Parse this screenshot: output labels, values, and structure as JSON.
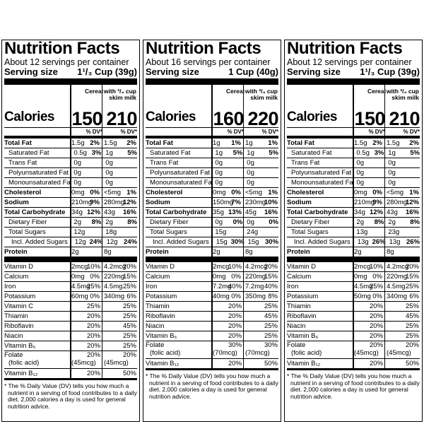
{
  "panels": [
    {
      "title": "Nutrition Facts",
      "servings": "About 12 servings per container",
      "serving_label": "Serving size",
      "serving_value": "1¹/₃ Cup (39g)",
      "col1_header": "Cereal",
      "col2_header": "with ³/₄ cup skim milk",
      "calories_label": "Calories",
      "calories_1": "150",
      "calories_2": "210",
      "dv_header_1": "% DV*",
      "dv_header_2": "% DV*",
      "nutrients": [
        {
          "name": "Total Fat",
          "a1": "1.5g",
          "p1": "2%",
          "a2": "1.5g",
          "p2": "2%"
        },
        {
          "name": "Saturated Fat",
          "a1": "0.5g",
          "p1": "3%",
          "a2": "1g",
          "p2": "5%"
        },
        {
          "name": "Trans Fat",
          "a1": "0g",
          "p1": "",
          "a2": "0g",
          "p2": ""
        },
        {
          "name": "Polyunsaturated Fat",
          "a1": "0g",
          "p1": "",
          "a2": "0g",
          "p2": ""
        },
        {
          "name": "Monounsaturated Fat",
          "a1": "0g",
          "p1": "",
          "a2": "0g",
          "p2": ""
        },
        {
          "name": "Cholesterol",
          "a1": "0mg",
          "p1": "0%",
          "a2": "<5mg",
          "p2": "1%"
        },
        {
          "name": "Sodium",
          "a1": "210mg",
          "p1": "9%",
          "a2": "280mg",
          "p2": "12%"
        },
        {
          "name": "Total Carbohydrate",
          "a1": "34g",
          "p1": "12%",
          "a2": "43g",
          "p2": "16%"
        },
        {
          "name": "Dietary Fiber",
          "a1": "2g",
          "p1": "8%",
          "a2": "2g",
          "p2": "8%"
        },
        {
          "name": "Total Sugars",
          "a1": "12g",
          "p1": "",
          "a2": "18g",
          "p2": ""
        },
        {
          "name": "Incl. Added Sugars",
          "a1": "12g",
          "p1": "24%",
          "a2": "12g",
          "p2": "24%"
        },
        {
          "name": "Protein",
          "a1": "2g",
          "p1": "",
          "a2": "8g",
          "p2": ""
        }
      ],
      "vitamins": [
        {
          "name": "Vitamin D",
          "a1": "2mcg",
          "p1": "10%",
          "a2": "4.2mcg",
          "p2": "20%"
        },
        {
          "name": "Calcium",
          "a1": "0mg",
          "p1": "0%",
          "a2": "220mg",
          "p2": "15%"
        },
        {
          "name": "Iron",
          "a1": "4.5mg",
          "p1": "25%",
          "a2": "4.5mg",
          "p2": "25%"
        },
        {
          "name": "Potassium",
          "a1": "60mg",
          "p1": "0%",
          "a2": "340mg",
          "p2": "6%"
        },
        {
          "name": "Vitamin C",
          "a1": "",
          "p1": "25%",
          "a2": "",
          "p2": "25%"
        },
        {
          "name": "Thiamin",
          "a1": "",
          "p1": "20%",
          "a2": "",
          "p2": "25%"
        },
        {
          "name": "Riboflavin",
          "a1": "",
          "p1": "20%",
          "a2": "",
          "p2": "45%"
        },
        {
          "name": "Niacin",
          "a1": "",
          "p1": "20%",
          "a2": "",
          "p2": "25%"
        },
        {
          "name": "Vitamin B₆",
          "a1": "",
          "p1": "20%",
          "a2": "",
          "p2": "25%"
        }
      ],
      "folate_name": "Folate",
      "folate_sub": "(folic acid)",
      "folate_a1": "(45mcg)",
      "folate_p1": "20%",
      "folate_a2": "(45mcg)",
      "folate_p2": "20%",
      "b12_name": "Vitamin B₁₂",
      "b12_p1": "20%",
      "b12_p2": "50%",
      "footnote": "* The % Daily Value (DV) tells you how much a nutrient in a serving of food contributes to a daily diet. 2,000 calories a day is used for general nutrition advice."
    },
    {
      "title": "Nutrition Facts",
      "servings": "About 16 servings per container",
      "serving_label": "Serving size",
      "serving_value": "1 Cup (40g)",
      "col1_header": "Cereal",
      "col2_header": "with ³/₄ cup skim milk",
      "calories_label": "Calories",
      "calories_1": "160",
      "calories_2": "220",
      "dv_header_1": "% DV*",
      "dv_header_2": "% DV*",
      "nutrients": [
        {
          "name": "Total Fat",
          "a1": "1g",
          "p1": "1%",
          "a2": "1g",
          "p2": "1%"
        },
        {
          "name": "Saturated Fat",
          "a1": "1g",
          "p1": "5%",
          "a2": "1g",
          "p2": "5%"
        },
        {
          "name": "Trans Fat",
          "a1": "0g",
          "p1": "",
          "a2": "0g",
          "p2": ""
        },
        {
          "name": "Polyunsaturated Fat",
          "a1": "0g",
          "p1": "",
          "a2": "0g",
          "p2": ""
        },
        {
          "name": "Monounsaturated Fat",
          "a1": "0g",
          "p1": "",
          "a2": "0g",
          "p2": ""
        },
        {
          "name": "Cholesterol",
          "a1": "0mg",
          "p1": "0%",
          "a2": "<5mg",
          "p2": "1%"
        },
        {
          "name": "Sodium",
          "a1": "150mg",
          "p1": "7%",
          "a2": "230mg",
          "p2": "10%"
        },
        {
          "name": "Total Carbohydrate",
          "a1": "35g",
          "p1": "13%",
          "a2": "45g",
          "p2": "16%"
        },
        {
          "name": "Dietary Fiber",
          "a1": "0g",
          "p1": "0%",
          "a2": "0g",
          "p2": "0%"
        },
        {
          "name": "Total Sugars",
          "a1": "15g",
          "p1": "",
          "a2": "24g",
          "p2": ""
        },
        {
          "name": "Incl. Added Sugars",
          "a1": "15g",
          "p1": "30%",
          "a2": "15g",
          "p2": "30%"
        },
        {
          "name": "Protein",
          "a1": "2g",
          "p1": "",
          "a2": "8g",
          "p2": ""
        }
      ],
      "vitamins": [
        {
          "name": "Vitamin D",
          "a1": "2mcg",
          "p1": "10%",
          "a2": "4.2mcg",
          "p2": "20%"
        },
        {
          "name": "Calcium",
          "a1": "0mg",
          "p1": "0%",
          "a2": "220mg",
          "p2": "15%"
        },
        {
          "name": "Iron",
          "a1": "7.2mg",
          "p1": "40%",
          "a2": "7.2mg",
          "p2": "40%"
        },
        {
          "name": "Potassium",
          "a1": "40mg",
          "p1": "0%",
          "a2": "350mg",
          "p2": "8%"
        },
        {
          "name": "Thiamin",
          "a1": "",
          "p1": "20%",
          "a2": "",
          "p2": "25%"
        },
        {
          "name": "Riboflavin",
          "a1": "",
          "p1": "20%",
          "a2": "",
          "p2": "45%"
        },
        {
          "name": "Niacin",
          "a1": "",
          "p1": "20%",
          "a2": "",
          "p2": "25%"
        },
        {
          "name": "Vitamin B₆",
          "a1": "",
          "p1": "20%",
          "a2": "",
          "p2": "25%"
        }
      ],
      "folate_name": "Folate",
      "folate_sub": "(folic acid)",
      "folate_a1": "(70mcg)",
      "folate_p1": "30%",
      "folate_a2": "(70mcg)",
      "folate_p2": "30%",
      "b12_name": "Vitamin B₁₂",
      "b12_p1": "20%",
      "b12_p2": "50%",
      "footnote": "* The % Daily Value (DV) tells you how much a nutrient in a serving of food contributes to a daily diet. 2,000 calories a day is used for general nutrition advice."
    },
    {
      "title": "Nutrition Facts",
      "servings": "About 12 servings per container",
      "serving_label": "Serving size",
      "serving_value": "1¹/₃ Cup (39g)",
      "col1_header": "Cereal",
      "col2_header": "with ³/₄ cup skim milk",
      "calories_label": "Calories",
      "calories_1": "150",
      "calories_2": "210",
      "dv_header_1": "% DV*",
      "dv_header_2": "% DV*",
      "nutrients": [
        {
          "name": "Total Fat",
          "a1": "1.5g",
          "p1": "2%",
          "a2": "1.5g",
          "p2": "2%"
        },
        {
          "name": "Saturated Fat",
          "a1": "0.5g",
          "p1": "3%",
          "a2": "1g",
          "p2": "5%"
        },
        {
          "name": "Trans Fat",
          "a1": "0g",
          "p1": "",
          "a2": "0g",
          "p2": ""
        },
        {
          "name": "Polyunsaturated Fat",
          "a1": "0g",
          "p1": "",
          "a2": "0g",
          "p2": ""
        },
        {
          "name": "Monounsaturated Fat",
          "a1": "0g",
          "p1": "",
          "a2": "0g",
          "p2": ""
        },
        {
          "name": "Cholesterol",
          "a1": "0mg",
          "p1": "0%",
          "a2": "<5mg",
          "p2": "1%"
        },
        {
          "name": "Sodium",
          "a1": "210mg",
          "p1": "9%",
          "a2": "280mg",
          "p2": "12%"
        },
        {
          "name": "Total Carbohydrate",
          "a1": "34g",
          "p1": "12%",
          "a2": "43g",
          "p2": "16%"
        },
        {
          "name": "Dietary Fiber",
          "a1": "2g",
          "p1": "8%",
          "a2": "2g",
          "p2": "8%"
        },
        {
          "name": "Total Sugars",
          "a1": "13g",
          "p1": "",
          "a2": "23g",
          "p2": ""
        },
        {
          "name": "Incl. Added Sugars",
          "a1": "13g",
          "p1": "26%",
          "a2": "13g",
          "p2": "26%"
        },
        {
          "name": "Protein",
          "a1": "2g",
          "p1": "",
          "a2": "8g",
          "p2": ""
        }
      ],
      "vitamins": [
        {
          "name": "Vitamin D",
          "a1": "2mcg",
          "p1": "10%",
          "a2": "4.2mcg",
          "p2": "20%"
        },
        {
          "name": "Calcium",
          "a1": "0mg",
          "p1": "0%",
          "a2": "220mg",
          "p2": "15%"
        },
        {
          "name": "Iron",
          "a1": "4.5mg",
          "p1": "25%",
          "a2": "4.5mg",
          "p2": "25%"
        },
        {
          "name": "Potassium",
          "a1": "50mg",
          "p1": "0%",
          "a2": "340mg",
          "p2": "6%"
        },
        {
          "name": "Thiamin",
          "a1": "",
          "p1": "20%",
          "a2": "",
          "p2": "25%"
        },
        {
          "name": "Riboflavin",
          "a1": "",
          "p1": "20%",
          "a2": "",
          "p2": "45%"
        },
        {
          "name": "Niacin",
          "a1": "",
          "p1": "20%",
          "a2": "",
          "p2": "25%"
        },
        {
          "name": "Vitamin B₆",
          "a1": "",
          "p1": "20%",
          "a2": "",
          "p2": "25%"
        }
      ],
      "folate_name": "Folate",
      "folate_sub": "(folic acid)",
      "folate_a1": "(45mcg)",
      "folate_p1": "20%",
      "folate_a2": "(45mcg)",
      "folate_p2": "20%",
      "b12_name": "Vitamin B₁₂",
      "b12_p1": "20%",
      "b12_p2": "50%",
      "footnote": "* The % Daily Value (DV) tells you how much a nutrient in a serving of food contributes to a daily diet. 2,000 calories a day is used for general nutrition advice."
    }
  ]
}
